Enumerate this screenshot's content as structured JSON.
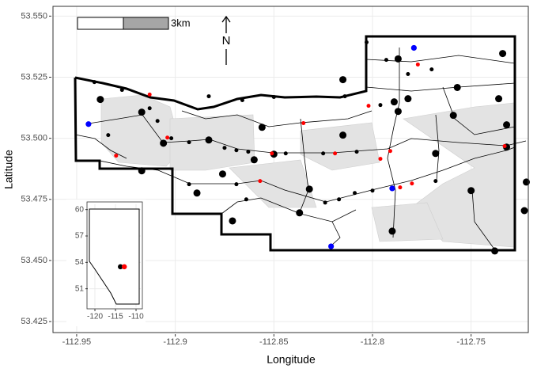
{
  "chart_data": [
    {
      "type": "scatter",
      "xlabel": "Longitude",
      "ylabel": "Latitude",
      "north_label": "N",
      "scale_label": "3km",
      "xlim": [
        -112.962,
        -112.721
      ],
      "ylim": [
        53.4205,
        53.554
      ],
      "xticks": [
        -112.95,
        -112.9,
        -112.85,
        -112.8,
        -112.75
      ],
      "yticks": [
        53.425,
        {
          "value": 53.45,
          "label": "53.450"
        },
        53.475,
        {
          "value": 53.5,
          "label": "53.500"
        },
        53.525,
        {
          "value": 53.55,
          "label": "53.550"
        }
      ],
      "grid": true,
      "series": [
        {
          "color": "#000000",
          "point_size": "large",
          "x": [
            -112.787,
            -112.734,
            -112.757,
            -112.736,
            -112.759,
            -112.732,
            -112.768,
            -112.732,
            -112.722,
            -112.75,
            -112.723,
            -112.79,
            -112.738,
            -112.832,
            -112.917,
            -112.938,
            -112.906,
            -112.883,
            -112.856,
            -112.86,
            -112.876,
            -112.871,
            -112.889,
            -112.917,
            -112.815,
            -112.837,
            -112.85,
            -112.787,
            -112.789,
            -112.782,
            -112.815
          ],
          "values": [
            53.5325,
            53.5347,
            53.5208,
            53.5162,
            53.5094,
            53.5055,
            53.4938,
            53.4964,
            53.4821,
            53.4786,
            53.4704,
            53.462,
            53.4539,
            53.4792,
            53.5107,
            53.5159,
            53.498,
            53.4993,
            53.5045,
            53.4912,
            53.4854,
            53.4662,
            53.4776,
            53.4867,
            53.5013,
            53.4695,
            53.4935,
            53.511,
            53.5149,
            53.5162,
            53.524
          ]
        },
        {
          "color": "#000000",
          "point_size": "small",
          "x": [
            -112.941,
            -112.927,
            -112.913,
            -112.909,
            -112.902,
            -112.893,
            -112.875,
            -112.869,
            -112.863,
            -112.844,
            -112.825,
            -112.808,
            -112.883,
            -112.85,
            -112.796,
            -112.817,
            -112.809,
            -112.8,
            -112.768,
            -112.824,
            -112.893,
            -112.869,
            -112.864,
            -112.934,
            -112.77,
            -112.782,
            -112.803,
            -112.793,
            -112.814,
            -112.866
          ],
          "values": [
            53.523,
            53.5198,
            53.5123,
            53.5071,
            53.5,
            53.4984,
            53.4961,
            53.4951,
            53.4945,
            53.4938,
            53.4938,
            53.4945,
            53.5172,
            53.5169,
            53.5136,
            53.475,
            53.4776,
            53.4786,
            53.4825,
            53.4737,
            53.4812,
            53.4812,
            53.475,
            53.5013,
            53.5282,
            53.5263,
            53.5393,
            53.5321,
            53.5172,
            53.5156
          ]
        },
        {
          "color": "#ff0000",
          "point_size": "small",
          "x": [
            -112.913,
            -112.904,
            -112.93,
            -112.851,
            -112.819,
            -112.802,
            -112.835,
            -112.796,
            -112.791,
            -112.777,
            -112.733,
            -112.857,
            -112.786,
            -112.78
          ],
          "values": [
            53.5179,
            53.5003,
            53.4929,
            53.4938,
            53.4938,
            53.5133,
            53.5062,
            53.4916,
            53.4948,
            53.5302,
            53.4968,
            53.4825,
            53.4799,
            53.4815
          ]
        },
        {
          "color": "#0000ff",
          "point_size": "medium",
          "x": [
            -112.944,
            -112.779,
            -112.79,
            -112.821
          ],
          "values": [
            53.5058,
            53.537,
            53.4795,
            53.4558
          ]
        }
      ]
    },
    {
      "type": "scatter",
      "xlim": [
        -121.35,
        -108.85
      ],
      "ylim": [
        48.9,
        60.6
      ],
      "xticks": [
        -120,
        -115,
        -110
      ],
      "yticks": [
        51,
        54,
        57,
        60
      ],
      "grid": true,
      "series": [
        {
          "color": "#000000",
          "point_size": "medium",
          "x": [
            -113.8
          ],
          "values": [
            53.5
          ]
        },
        {
          "color": "#ff0000",
          "point_size": "medium",
          "x": [
            -112.85
          ],
          "values": [
            53.5
          ]
        }
      ]
    }
  ]
}
